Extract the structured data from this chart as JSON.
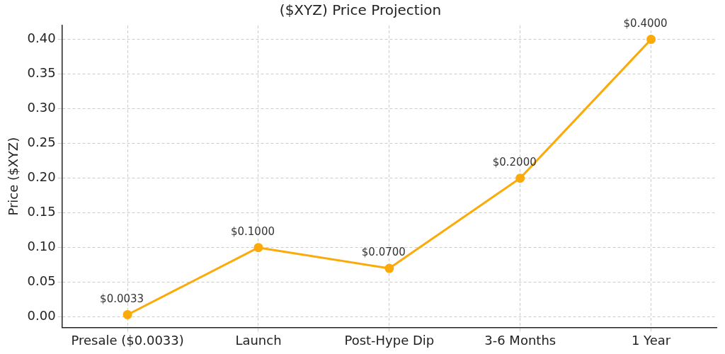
{
  "chart_data": {
    "type": "line",
    "title": "($XYZ) Price Projection",
    "ylabel": "Price ($XYZ)",
    "categories": [
      "Presale ($0.0033)",
      "Launch",
      "Post-Hype Dip",
      "3-6 Months",
      "1 Year"
    ],
    "series": [
      {
        "color": "#fbaa0a",
        "values": [
          0.0033,
          0.1,
          0.07,
          0.2,
          0.4
        ],
        "value_labels": [
          "$0.0033",
          "$0.1000",
          "$0.0700",
          "$0.2000",
          "$0.4000"
        ]
      }
    ],
    "ylim": [
      -0.015,
      0.42
    ],
    "yticks": [
      {
        "value": 0,
        "label": "0.00"
      },
      {
        "value": 0.05,
        "label": "0.05"
      },
      {
        "value": 0.1,
        "label": "0.10"
      },
      {
        "value": 0.15,
        "label": "0.15"
      },
      {
        "value": 0.2,
        "label": "0.20"
      },
      {
        "value": 0.25,
        "label": "0.25"
      },
      {
        "value": 0.3,
        "label": "0.30"
      },
      {
        "value": 0.35,
        "label": "0.35"
      },
      {
        "value": 0.4,
        "label": "0.40"
      }
    ],
    "grid": true,
    "legend": false,
    "marker": "circle",
    "line_style": "solid"
  }
}
